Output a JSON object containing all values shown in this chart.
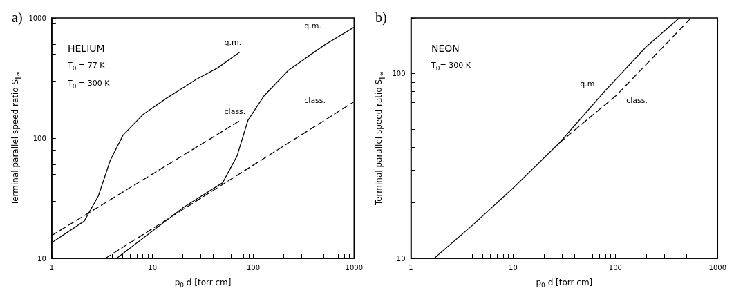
{
  "chart_data": [
    {
      "type": "line",
      "title": "a)",
      "xlabel": "p$_{0}$ d [torr cm]",
      "ylabel": "Terminal parallel speed ratio S$_{∥∞}$",
      "log": "xy",
      "grid": false,
      "legend": false,
      "marker": "none",
      "xlim": [
        1,
        1000
      ],
      "ylim": [
        10,
        1000
      ],
      "xticks": [
        1,
        {
          "value": 2,
          "label": null
        },
        {
          "value": 3,
          "label": null
        },
        {
          "value": 4,
          "label": null
        },
        {
          "value": 5,
          "label": null
        },
        {
          "value": 6,
          "label": null
        },
        {
          "value": 7,
          "label": null
        },
        {
          "value": 8,
          "label": null
        },
        {
          "value": 9,
          "label": null
        },
        10,
        {
          "value": 20,
          "label": null
        },
        {
          "value": 30,
          "label": null
        },
        {
          "value": 40,
          "label": null
        },
        {
          "value": 50,
          "label": null
        },
        {
          "value": 60,
          "label": null
        },
        {
          "value": 70,
          "label": null
        },
        {
          "value": 80,
          "label": null
        },
        {
          "value": 90,
          "label": null
        },
        100,
        {
          "value": 200,
          "label": null
        },
        {
          "value": 300,
          "label": null
        },
        {
          "value": 400,
          "label": null
        },
        {
          "value": 500,
          "label": null
        },
        {
          "value": 600,
          "label": null
        },
        {
          "value": 700,
          "label": null
        },
        {
          "value": 800,
          "label": null
        },
        {
          "value": 900,
          "label": null
        },
        1000
      ],
      "yticks": [
        10,
        {
          "value": 20,
          "label": null
        },
        {
          "value": 30,
          "label": null
        },
        {
          "value": 40,
          "label": null
        },
        {
          "value": 50,
          "label": null
        },
        {
          "value": 60,
          "label": null
        },
        {
          "value": 70,
          "label": null
        },
        {
          "value": 80,
          "label": null
        },
        {
          "value": 90,
          "label": null
        },
        100,
        {
          "value": 200,
          "label": null
        },
        {
          "value": 300,
          "label": null
        },
        {
          "value": 400,
          "label": null
        },
        {
          "value": 500,
          "label": null
        },
        {
          "value": 600,
          "label": null
        },
        {
          "value": 700,
          "label": null
        },
        {
          "value": 800,
          "label": null
        },
        {
          "value": 900,
          "label": null
        },
        1000
      ],
      "series": [
        {
          "name": "q.m.",
          "color": "#000000",
          "line_style": "solid",
          "x": [
            1,
            2.1,
            2.9,
            3.8,
            5.1,
            8.1,
            13.8,
            26.9,
            44.5,
            73
          ],
          "values": [
            13.5,
            20.4,
            33,
            65,
            106,
            158,
            215,
            307,
            385,
            518
          ]
        },
        {
          "name": "class.",
          "color": "#000000",
          "line_style": "dashed",
          "x": [
            1,
            73
          ],
          "values": [
            15.5,
            139
          ]
        },
        {
          "name": "q.m.",
          "color": "#000000",
          "line_style": "solid",
          "x": [
            4.4,
            20.4,
            49.6,
            69,
            88.6,
            128,
            223,
            515,
            1000
          ],
          "values": [
            10,
            26.6,
            42.5,
            71,
            141,
            225,
            367,
            600,
            838
          ]
        },
        {
          "name": "class.",
          "color": "#000000",
          "line_style": "dashed",
          "x": [
            3.4,
            1000
          ],
          "values": [
            10,
            201
          ]
        }
      ],
      "annotations": [
        "HELIUM",
        "T$_{0}$ = 77 K",
        "T$_{0}$ = 300 K"
      ]
    },
    {
      "type": "line",
      "title": "b)",
      "xlabel": "p$_{0}$ d [torr cm]",
      "ylabel": "Terminal parallel speed ratio S$_{∥∞}$",
      "log": "xy",
      "grid": false,
      "legend": false,
      "marker": "none",
      "xlim": [
        1,
        1000
      ],
      "ylim": [
        10,
        200
      ],
      "xticks": [
        1,
        {
          "value": 2,
          "label": null
        },
        {
          "value": 3,
          "label": null
        },
        {
          "value": 4,
          "label": null
        },
        {
          "value": 5,
          "label": null
        },
        {
          "value": 6,
          "label": null
        },
        {
          "value": 7,
          "label": null
        },
        {
          "value": 8,
          "label": null
        },
        {
          "value": 9,
          "label": null
        },
        10,
        {
          "value": 20,
          "label": null
        },
        {
          "value": 30,
          "label": null
        },
        {
          "value": 40,
          "label": null
        },
        {
          "value": 50,
          "label": null
        },
        {
          "value": 60,
          "label": null
        },
        {
          "value": 70,
          "label": null
        },
        {
          "value": 80,
          "label": null
        },
        {
          "value": 90,
          "label": null
        },
        100,
        {
          "value": 200,
          "label": null
        },
        {
          "value": 300,
          "label": null
        },
        {
          "value": 400,
          "label": null
        },
        {
          "value": 500,
          "label": null
        },
        {
          "value": 600,
          "label": null
        },
        {
          "value": 700,
          "label": null
        },
        {
          "value": 800,
          "label": null
        },
        {
          "value": 900,
          "label": null
        },
        1000
      ],
      "yticks": [
        10,
        {
          "value": 20,
          "label": null
        },
        {
          "value": 30,
          "label": null
        },
        {
          "value": 40,
          "label": null
        },
        {
          "value": 50,
          "label": null
        },
        {
          "value": 60,
          "label": null
        },
        {
          "value": 70,
          "label": null
        },
        {
          "value": 80,
          "label": null
        },
        {
          "value": 90,
          "label": null
        },
        100,
        {
          "value": 200,
          "label": null
        }
      ],
      "series": [
        {
          "name": "q.m.",
          "color": "#000000",
          "line_style": "solid",
          "x": [
            1.69,
            4,
            10,
            28.4,
            77.5,
            201,
            423
          ],
          "values": [
            10,
            15.1,
            24,
            42.2,
            79.5,
            140,
            200
          ]
        },
        {
          "name": "class.",
          "color": "#000000",
          "line_style": "dashed",
          "x": [
            28.4,
            103,
            550
          ],
          "values": [
            42.2,
            76.5,
            200
          ]
        }
      ],
      "annotations": [
        "NEON",
        "T$_{0}$= 300 K"
      ]
    }
  ]
}
